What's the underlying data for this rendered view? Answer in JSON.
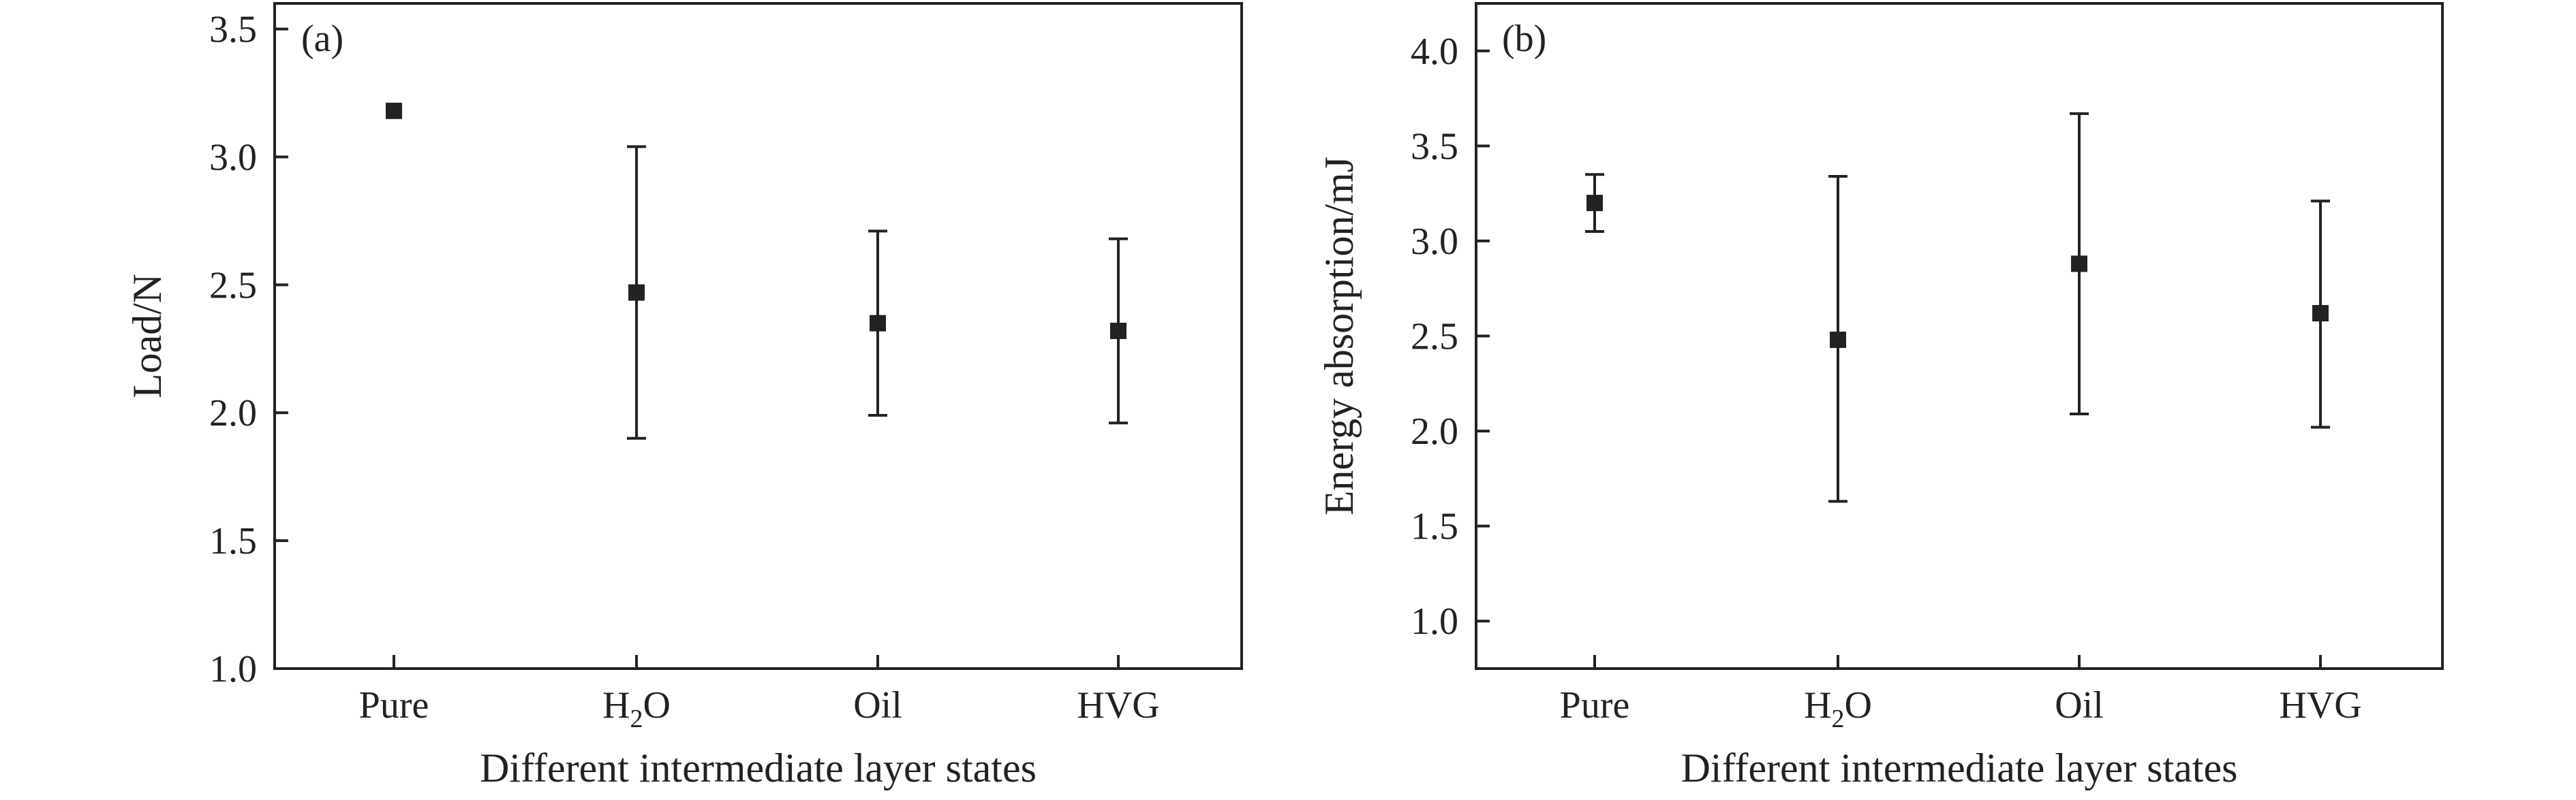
{
  "chart_data": [
    {
      "type": "scatter",
      "panel_label": "(a)",
      "title": "",
      "xlabel": "Different intermediate layer states",
      "ylabel": "Load/N",
      "categories": [
        "Pure",
        "H2O",
        "Oil",
        "HVG"
      ],
      "values": [
        3.18,
        2.47,
        2.35,
        2.32
      ],
      "error_low": [
        3.18,
        1.9,
        1.99,
        1.96
      ],
      "error_high": [
        3.18,
        3.04,
        2.71,
        2.68
      ],
      "ylim": [
        1.0,
        3.6
      ],
      "yticks": [
        "1.0",
        "1.5",
        "2.0",
        "2.5",
        "3.0",
        "3.5"
      ],
      "grid": false,
      "marker": "square",
      "color": "#222222"
    },
    {
      "type": "scatter",
      "panel_label": "(b)",
      "title": "",
      "xlabel": "Different intermediate layer states",
      "ylabel": "Energy absorption/mJ",
      "categories": [
        "Pure",
        "H2O",
        "Oil",
        "HVG"
      ],
      "values": [
        3.2,
        2.48,
        2.88,
        2.62
      ],
      "error_low": [
        3.05,
        1.63,
        2.09,
        2.02
      ],
      "error_high": [
        3.35,
        3.34,
        3.67,
        3.21
      ],
      "ylim": [
        0.75,
        4.25
      ],
      "yticks": [
        "1.0",
        "1.5",
        "2.0",
        "2.5",
        "3.0",
        "3.5",
        "4.0"
      ],
      "grid": false,
      "marker": "square",
      "color": "#222222"
    }
  ]
}
